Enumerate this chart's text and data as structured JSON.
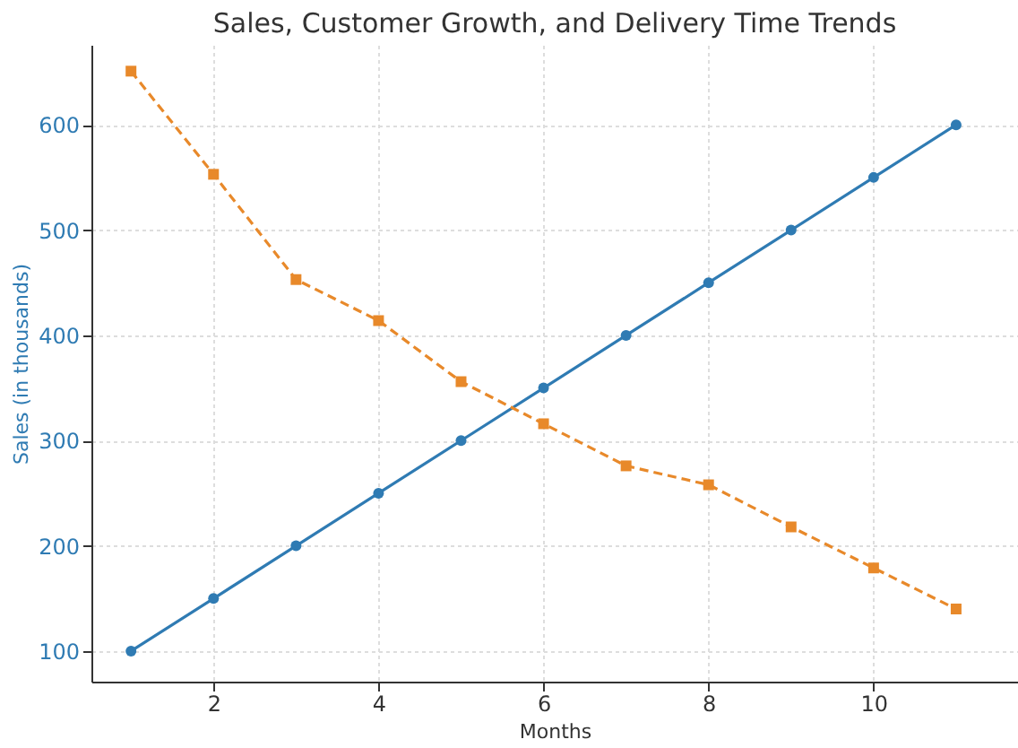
{
  "chart_data": {
    "type": "line",
    "title": "Sales, Customer Growth, and Delivery Time Trends",
    "xlabel": "Months",
    "ylabel": "Sales (in thousands)",
    "x": [
      1,
      2,
      3,
      4,
      5,
      6,
      7,
      8,
      9,
      10,
      11
    ],
    "series": [
      {
        "color": "#2f7bb3",
        "marker": "circle",
        "line_style": "solid",
        "values": [
          100,
          150,
          200,
          250,
          300,
          350,
          400,
          450,
          500,
          550,
          600
        ]
      },
      {
        "color": "#e8892a",
        "marker": "square",
        "line_style": "dashed",
        "values": [
          651,
          553,
          453,
          414,
          356,
          316,
          276,
          258,
          218,
          179,
          140
        ]
      }
    ],
    "xlim": [
      0.52,
      11.75
    ],
    "xticks": [
      2,
      4,
      6,
      8,
      10
    ],
    "ylim": [
      71,
      676
    ],
    "yticks": [
      100,
      200,
      300,
      400,
      500,
      600
    ],
    "grid": true
  }
}
